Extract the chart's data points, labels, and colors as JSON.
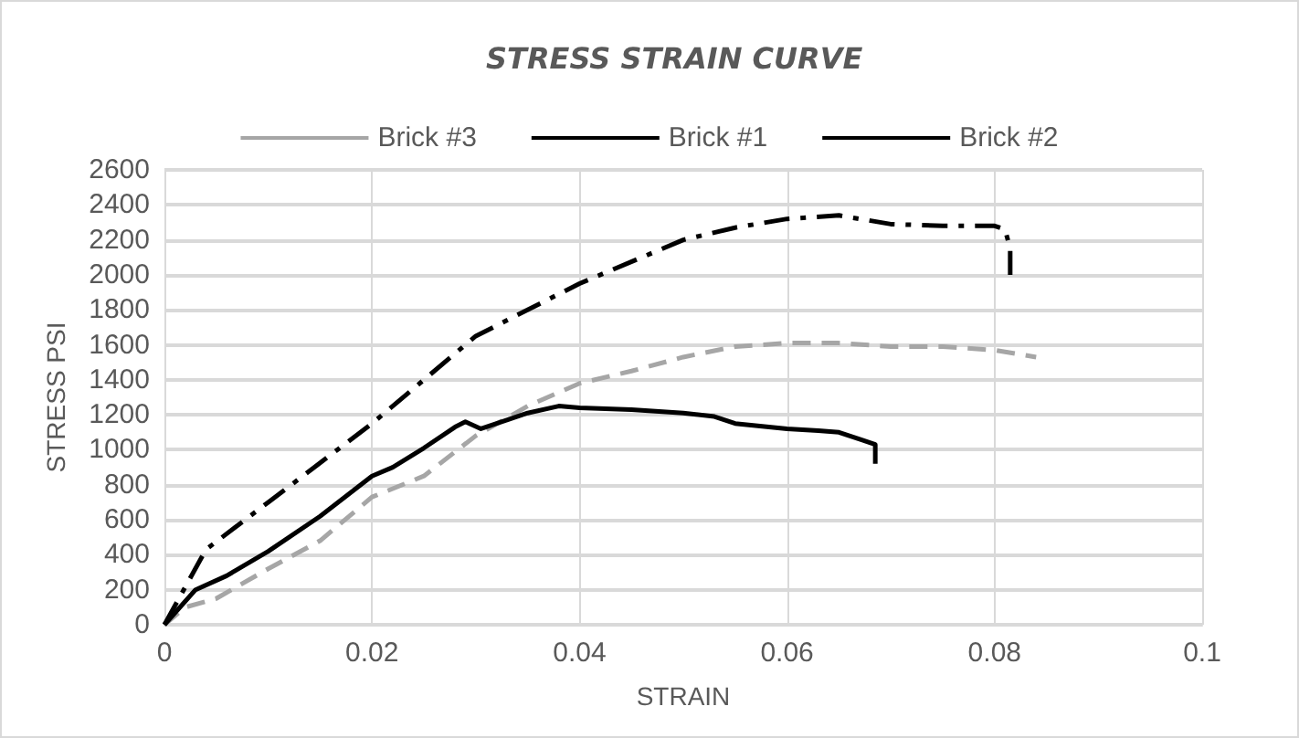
{
  "chart_data": {
    "type": "line",
    "title": "STRESS STRAIN CURVE",
    "xlabel": "STRAIN",
    "ylabel": "STRESS PSI",
    "xlim": [
      0,
      0.1
    ],
    "xticks": [
      0,
      0.02,
      0.04,
      0.06,
      0.08,
      0.1
    ],
    "ylim": [
      0,
      2600
    ],
    "yticks": [
      0,
      200,
      400,
      600,
      800,
      1000,
      1200,
      1400,
      1600,
      1800,
      2000,
      2200,
      2400,
      2600
    ],
    "grid": true,
    "legend": "top",
    "marker": "none",
    "series": [
      {
        "name": "Brick #3",
        "color": "#a6a6a6",
        "line_style": "dashed",
        "x": [
          0,
          0.002,
          0.005,
          0.01,
          0.015,
          0.02,
          0.025,
          0.03,
          0.035,
          0.04,
          0.045,
          0.05,
          0.055,
          0.06,
          0.065,
          0.07,
          0.075,
          0.08,
          0.084
        ],
        "values": [
          0,
          100,
          150,
          320,
          480,
          730,
          850,
          1080,
          1250,
          1380,
          1450,
          1530,
          1590,
          1610,
          1610,
          1590,
          1590,
          1570,
          1530
        ]
      },
      {
        "name": "Brick #1",
        "color": "#000000",
        "line_style": "solid",
        "x": [
          0,
          0.003,
          0.006,
          0.01,
          0.015,
          0.02,
          0.022,
          0.025,
          0.028,
          0.029,
          0.0305,
          0.033,
          0.035,
          0.038,
          0.04,
          0.045,
          0.05,
          0.053,
          0.055,
          0.06,
          0.063,
          0.065,
          0.067,
          0.0685,
          0.0685
        ],
        "values": [
          0,
          200,
          280,
          420,
          620,
          850,
          900,
          1010,
          1130,
          1160,
          1120,
          1170,
          1210,
          1250,
          1240,
          1230,
          1210,
          1190,
          1150,
          1120,
          1110,
          1100,
          1060,
          1030,
          920
        ]
      },
      {
        "name": "Brick #2",
        "color": "#000000",
        "line_style": "dashdot",
        "x": [
          0,
          0.004,
          0.01,
          0.02,
          0.03,
          0.04,
          0.05,
          0.055,
          0.06,
          0.065,
          0.07,
          0.075,
          0.08,
          0.081,
          0.0815,
          0.0815
        ],
        "values": [
          0,
          430,
          700,
          1150,
          1650,
          1950,
          2200,
          2270,
          2320,
          2340,
          2290,
          2280,
          2280,
          2260,
          2150,
          2000
        ]
      }
    ]
  }
}
